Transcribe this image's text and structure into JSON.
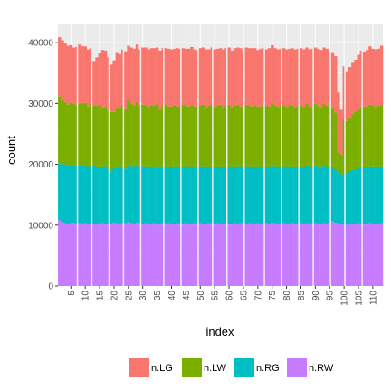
{
  "chart_data": {
    "type": "bar",
    "stacked": true,
    "xlabel": "index",
    "ylabel": "count",
    "x_tick_labels": [
      "5",
      "10",
      "15",
      "20",
      "25",
      "30",
      "35",
      "40",
      "45",
      "50",
      "55",
      "60",
      "65",
      "70",
      "75",
      "80",
      "85",
      "90",
      "95",
      "100",
      "105",
      "110"
    ],
    "x_ticks": [
      5,
      10,
      15,
      20,
      25,
      30,
      35,
      40,
      45,
      50,
      55,
      60,
      65,
      70,
      75,
      80,
      85,
      90,
      95,
      100,
      105,
      110
    ],
    "y_ticks": [
      0,
      10000,
      20000,
      30000,
      40000
    ],
    "y_tick_labels": [
      "0",
      "10000",
      "20000",
      "30000",
      "40000"
    ],
    "xlim": [
      0.5,
      113.5
    ],
    "ylim": [
      0,
      43000
    ],
    "grid": true,
    "panel_background": "#EBEBEB",
    "legend_position": "bottom",
    "n_bars": 113,
    "gap_indices": [
      7,
      12,
      18,
      23,
      29,
      37,
      43,
      49,
      54,
      59,
      65,
      72,
      78,
      84,
      89,
      95,
      100,
      106
    ],
    "series": [
      {
        "name": "n.RW",
        "color": "#C77CFF",
        "values": [
          10800,
          10500,
          10300,
          10200,
          10300,
          10400,
          10200,
          10300,
          10100,
          10300,
          10200,
          10300,
          10200,
          10100,
          10200,
          10300,
          10200,
          10100,
          10200,
          10400,
          10300,
          10200,
          10300,
          10300,
          10500,
          10300,
          10200,
          10400,
          10300,
          10200,
          10300,
          10200,
          10100,
          10300,
          10200,
          10100,
          10300,
          10200,
          10300,
          10100,
          10200,
          10300,
          10200,
          10100,
          10300,
          10200,
          10100,
          10300,
          10200,
          10300,
          10200,
          10100,
          10300,
          10200,
          10100,
          10300,
          10200,
          10100,
          10300,
          10200,
          10100,
          10300,
          10200,
          10300,
          10100,
          10200,
          10300,
          10200,
          10100,
          10300,
          10200,
          10100,
          10300,
          10200,
          10400,
          10300,
          10200,
          10100,
          10300,
          10200,
          10100,
          10300,
          10200,
          10100,
          10300,
          10200,
          10300,
          10100,
          10200,
          10300,
          10200,
          10100,
          10300,
          10200,
          10500,
          10600,
          10400,
          10300,
          10200,
          10100,
          10000,
          10100,
          10200,
          10100,
          10300,
          10200,
          10100,
          10200,
          10300,
          10200,
          10100,
          10200,
          10300
        ]
      },
      {
        "name": "n.RG",
        "color": "#00BFC4",
        "values": [
          9400,
          9500,
          9700,
          9600,
          9500,
          9400,
          9600,
          9500,
          9700,
          9500,
          9300,
          9400,
          9600,
          9500,
          9300,
          9400,
          9500,
          9200,
          8600,
          9000,
          9400,
          9300,
          9200,
          9000,
          9500,
          9400,
          9500,
          9600,
          9400,
          9500,
          9400,
          9300,
          9500,
          9400,
          9500,
          9300,
          9400,
          9500,
          9300,
          9400,
          9500,
          9400,
          9300,
          9500,
          9400,
          9300,
          9500,
          9400,
          9300,
          9400,
          9500,
          9400,
          9300,
          9500,
          9400,
          9300,
          9500,
          9400,
          9300,
          9500,
          9400,
          9300,
          9500,
          9400,
          9300,
          9500,
          9400,
          9300,
          9500,
          9400,
          9300,
          9500,
          9400,
          9300,
          9500,
          9400,
          9300,
          9500,
          9400,
          9300,
          9500,
          9400,
          9300,
          9500,
          9400,
          9300,
          9500,
          9400,
          9300,
          9500,
          9400,
          9300,
          9500,
          9400,
          9400,
          9000,
          8800,
          8400,
          8200,
          8000,
          8500,
          8800,
          8900,
          9100,
          9200,
          9300,
          9400,
          9300,
          9400,
          9500,
          9400,
          9300,
          9400
        ]
      },
      {
        "name": "n.LW",
        "color": "#7CAE00",
        "values": [
          11000,
          10500,
          10200,
          10000,
          10300,
          10100,
          9900,
          10200,
          10100,
          10300,
          10000,
          10200,
          9800,
          10000,
          10300,
          9600,
          9700,
          9500,
          9800,
          9200,
          9600,
          9800,
          10100,
          9900,
          10500,
          10300,
          10000,
          10200,
          9900,
          10100,
          10000,
          9800,
          10100,
          9900,
          10200,
          9700,
          10000,
          10100,
          9900,
          10000,
          10100,
          9800,
          10000,
          10200,
          9900,
          10000,
          10100,
          9800,
          10000,
          9900,
          10100,
          9800,
          10000,
          10100,
          9900,
          10000,
          10100,
          9800,
          10000,
          10100,
          9900,
          10000,
          10100,
          9800,
          10000,
          10100,
          9900,
          10000,
          10100,
          9800,
          10000,
          10100,
          9900,
          10000,
          10200,
          10000,
          9900,
          10100,
          10000,
          9900,
          10100,
          10000,
          9900,
          10100,
          10000,
          9900,
          10100,
          10000,
          9900,
          10100,
          10000,
          9900,
          10100,
          10000,
          10300,
          9700,
          9300,
          3300,
          3200,
          9400,
          8600,
          8800,
          9200,
          9500,
          9700,
          9900,
          10000,
          9900,
          10100,
          10000,
          9900,
          10100,
          10000
        ]
      },
      {
        "name": "n.LG",
        "color": "#F8766D",
        "values": [
          9700,
          9900,
          9800,
          9700,
          9500,
          9300,
          9600,
          9700,
          9500,
          9300,
          9400,
          9200,
          7400,
          8000,
          8400,
          9500,
          9300,
          8800,
          7800,
          8500,
          9000,
          8800,
          9300,
          9400,
          9000,
          9200,
          9300,
          9500,
          9300,
          9400,
          9500,
          9600,
          9400,
          9500,
          9300,
          9600,
          9400,
          9300,
          9500,
          9400,
          9200,
          9600,
          9500,
          9300,
          9400,
          9500,
          9600,
          9400,
          9300,
          9500,
          9400,
          9600,
          9300,
          9400,
          9500,
          9400,
          9300,
          9600,
          9500,
          9400,
          9300,
          9500,
          9400,
          9600,
          9300,
          9400,
          9500,
          9600,
          9400,
          9300,
          9500,
          9400,
          9300,
          9600,
          9500,
          9400,
          9500,
          9300,
          9400,
          9500,
          9300,
          9400,
          9500,
          9300,
          9400,
          9500,
          9300,
          9400,
          9600,
          9300,
          9400,
          9500,
          9300,
          9400,
          8300,
          9000,
          9300,
          9800,
          7500,
          8600,
          8200,
          8300,
          8400,
          8500,
          8800,
          9300,
          8900,
          9400,
          9600,
          9300,
          9500,
          9400,
          9800
        ]
      }
    ]
  }
}
